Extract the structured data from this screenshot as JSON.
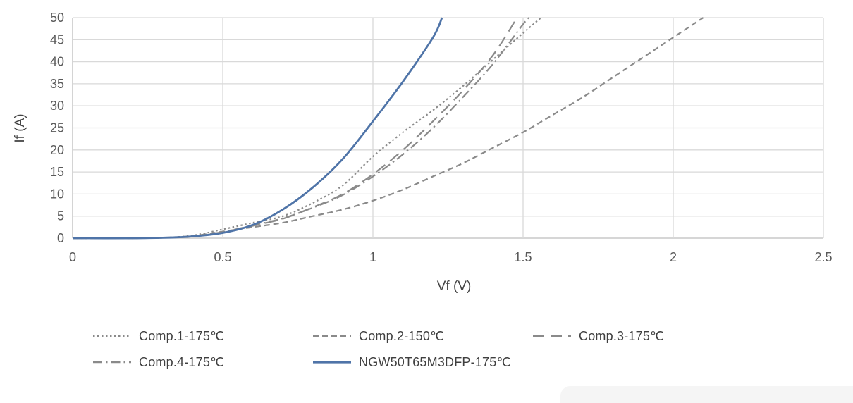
{
  "figure": {
    "background": "#ffffff",
    "artifact_color": "#f5f5f5"
  },
  "colors": {
    "grid": "#d9d9d9",
    "axis": "#bdbdbd",
    "tick_text": "#595959",
    "series_gray": "#8a8a8a",
    "series_blue": "#4f74a8"
  },
  "chart_data": {
    "type": "line",
    "title": "",
    "xlabel": "Vf (V)",
    "ylabel": "If (A)",
    "xlim": [
      0,
      2.5
    ],
    "ylim": [
      0,
      50
    ],
    "x_tick_values": [
      0,
      0.5,
      1,
      1.5,
      2,
      2.5
    ],
    "x_tick_labels": [
      "0",
      "0.5",
      "1",
      "1.5",
      "2",
      "2.5"
    ],
    "y_tick_values": [
      0,
      5,
      10,
      15,
      20,
      25,
      30,
      35,
      40,
      45,
      50
    ],
    "y_tick_labels": [
      "0",
      "5",
      "10",
      "15",
      "20",
      "25",
      "30",
      "35",
      "40",
      "45",
      "50"
    ],
    "grid": true,
    "legend_position": "bottom",
    "legend_columns": 3,
    "series": [
      {
        "id": "comp1",
        "name": "Comp.1-175℃",
        "style": "dotted",
        "color": "#8a8a8a",
        "points": [
          [
            0,
            0
          ],
          [
            0.2,
            0
          ],
          [
            0.3,
            0.1
          ],
          [
            0.4,
            0.6
          ],
          [
            0.5,
            2
          ],
          [
            0.6,
            3.5
          ],
          [
            0.7,
            5
          ],
          [
            0.8,
            8
          ],
          [
            0.9,
            12
          ],
          [
            1.0,
            18.5
          ],
          [
            1.1,
            24
          ],
          [
            1.2,
            29
          ],
          [
            1.3,
            34.5
          ],
          [
            1.4,
            40.5
          ],
          [
            1.5,
            46.5
          ],
          [
            1.56,
            50
          ]
        ]
      },
      {
        "id": "comp2",
        "name": "Comp.2-150℃",
        "style": "dashed",
        "color": "#8a8a8a",
        "points": [
          [
            0,
            0
          ],
          [
            0.2,
            0
          ],
          [
            0.3,
            0.1
          ],
          [
            0.4,
            0.5
          ],
          [
            0.5,
            1.5
          ],
          [
            0.6,
            2.5
          ],
          [
            0.7,
            3.5
          ],
          [
            0.8,
            5
          ],
          [
            0.9,
            6.5
          ],
          [
            1.0,
            8.5
          ],
          [
            1.1,
            11
          ],
          [
            1.2,
            14
          ],
          [
            1.3,
            17
          ],
          [
            1.4,
            20.5
          ],
          [
            1.5,
            24
          ],
          [
            1.6,
            28
          ],
          [
            1.7,
            32
          ],
          [
            1.8,
            36.5
          ],
          [
            1.9,
            41
          ],
          [
            2.0,
            45.5
          ],
          [
            2.1,
            50
          ]
        ]
      },
      {
        "id": "comp3",
        "name": "Comp.3-175℃",
        "style": "longdash",
        "color": "#8a8a8a",
        "points": [
          [
            0,
            0
          ],
          [
            0.2,
            0
          ],
          [
            0.3,
            0.1
          ],
          [
            0.4,
            0.4
          ],
          [
            0.5,
            1.3
          ],
          [
            0.6,
            2.8
          ],
          [
            0.7,
            4.4
          ],
          [
            0.8,
            7
          ],
          [
            0.9,
            10
          ],
          [
            1.0,
            14.5
          ],
          [
            1.1,
            20
          ],
          [
            1.2,
            26.5
          ],
          [
            1.3,
            33.5
          ],
          [
            1.4,
            41.5
          ],
          [
            1.48,
            50
          ]
        ]
      },
      {
        "id": "comp4",
        "name": "Comp.4-175℃",
        "style": "dashdot",
        "color": "#8a8a8a",
        "points": [
          [
            0,
            0
          ],
          [
            0.2,
            0
          ],
          [
            0.3,
            0.1
          ],
          [
            0.4,
            0.4
          ],
          [
            0.5,
            1.4
          ],
          [
            0.6,
            2.9
          ],
          [
            0.7,
            4.5
          ],
          [
            0.8,
            6.9
          ],
          [
            0.9,
            9.8
          ],
          [
            1.0,
            14
          ],
          [
            1.1,
            19
          ],
          [
            1.2,
            25
          ],
          [
            1.3,
            32
          ],
          [
            1.4,
            39.5
          ],
          [
            1.5,
            48.5
          ],
          [
            1.52,
            50
          ]
        ]
      },
      {
        "id": "ngw",
        "name": "NGW50T65M3DFP-175℃",
        "style": "solid",
        "color": "#4f74a8",
        "points": [
          [
            0,
            0
          ],
          [
            0.2,
            0
          ],
          [
            0.3,
            0.1
          ],
          [
            0.4,
            0.4
          ],
          [
            0.5,
            1.2
          ],
          [
            0.6,
            3
          ],
          [
            0.7,
            6.5
          ],
          [
            0.8,
            11.5
          ],
          [
            0.9,
            18
          ],
          [
            1.0,
            26.5
          ],
          [
            1.1,
            35.5
          ],
          [
            1.2,
            45.5
          ],
          [
            1.23,
            50
          ]
        ]
      }
    ]
  }
}
